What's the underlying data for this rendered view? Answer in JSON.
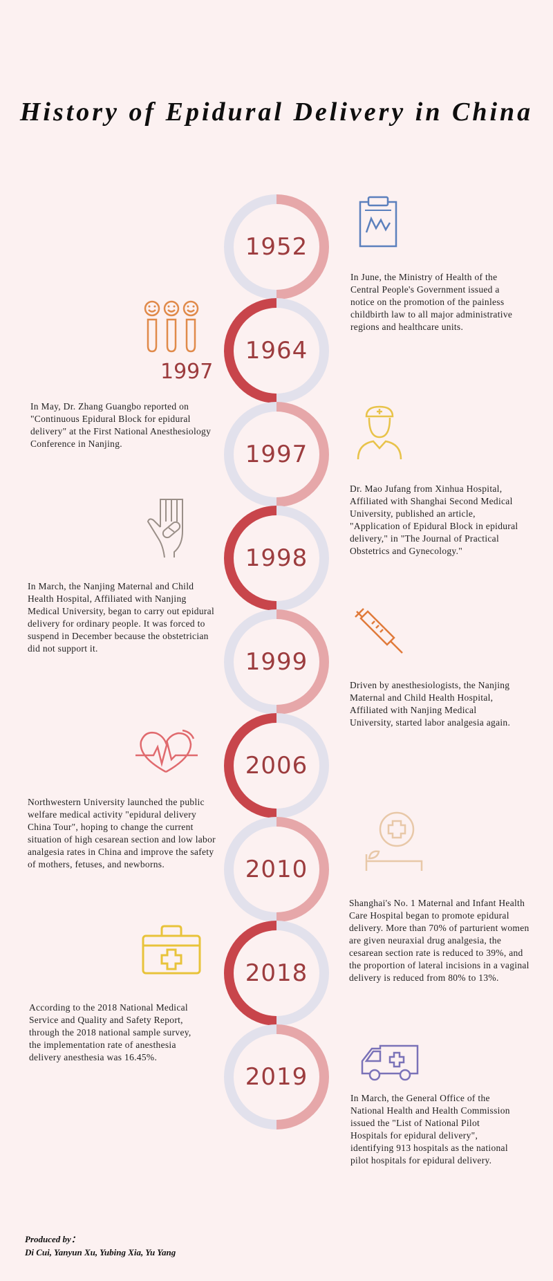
{
  "title": "History of Epidural Delivery in China",
  "timeline": [
    {
      "year": "1952",
      "text": "In June, the Ministry of Health of the\nCentral People's Government issued a\nnotice on the promotion of the painless\nchildbirth law to all major administrative\nregions and healthcare units."
    },
    {
      "year": "1964",
      "text": ""
    },
    {
      "year": "1997",
      "text": "In May, Dr. Zhang Guangbo reported on\n\"Continuous Epidural Block for epidural\ndelivery\" at the First National Anesthesiology\nConference in Nanjing."
    },
    {
      "year": "1997",
      "text": "Dr. Mao Jufang from Xinhua Hospital,\nAffiliated with Shanghai Second Medical\nUniversity, published an article,\n\"Application of Epidural Block in epidural\ndelivery,\" in \"The Journal of Practical\nObstetrics and Gynecology.\""
    },
    {
      "year": "1998",
      "text": "In March, the Nanjing Maternal and Child\nHealth Hospital, Affiliated with Nanjing\nMedical University, began to carry out epidural\ndelivery for ordinary people. It was forced to\nsuspend in December because the obstetrician\ndid not support it."
    },
    {
      "year": "1999",
      "text": "Driven by anesthesiologists, the Nanjing\nMaternal and Child Health Hospital,\nAffiliated with Nanjing Medical\nUniversity, started labor analgesia again."
    },
    {
      "year": "2006",
      "text": "Northwestern University launched the public\nwelfare medical activity \"epidural delivery\nChina Tour\", hoping to change the current\nsituation of high cesarean section and low labor\nanalgesia rates in China and improve the safety\nof mothers, fetuses, and newborns."
    },
    {
      "year": "2010",
      "text": "Shanghai's No. 1 Maternal and Infant Health\nCare Hospital began to promote epidural\ndelivery. More than 70% of parturient women\nare given neuraxial drug analgesia, the\ncesarean section rate is reduced to 39%, and\nthe proportion of lateral incisions in a vaginal\ndelivery is reduced from 80% to 13%."
    },
    {
      "year": "2018",
      "text": "According to the 2018 National Medical\nService and Quality and Safety Report,\nthrough the 2018 national sample survey,\nthe implementation rate of anesthesia\ndelivery anesthesia was 16.45%."
    },
    {
      "year": "2019",
      "text": "In March, the General Office of the\nNational Health and Health Commission\nissued the \"List of  National Pilot\nHospitals for epidural delivery\",\nidentifying 913 hospitals as the national\npilot hospitals for epidural delivery."
    }
  ],
  "extra_year_label": "1997",
  "credits": {
    "label": "Produced by：",
    "names": "Di Cui, Yanyun Xu, Yubing Xia, Yu Yang"
  },
  "colors": {
    "background": "#fcf1f1",
    "ring_light": "#e2e1ec",
    "ring_pink": "#e6a7a9",
    "ring_red": "#c8454b",
    "year_text": "#9c3c3e"
  },
  "icons": [
    "clipboard-chart-icon",
    "smiley-tubes-icon",
    "nurse-icon",
    "hand-bandage-icon",
    "syringe-icon",
    "heartbeat-icon",
    "hospital-bed-icon",
    "medical-kit-icon",
    "ambulance-icon"
  ]
}
